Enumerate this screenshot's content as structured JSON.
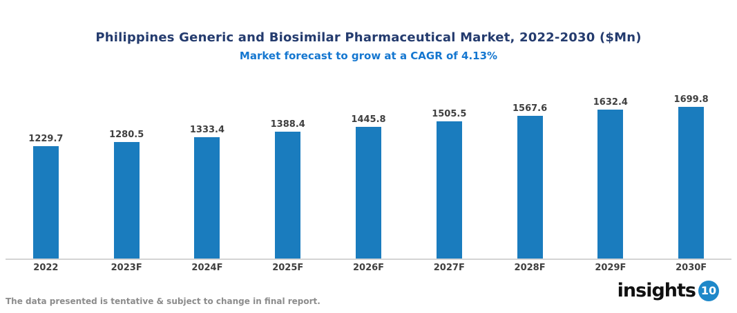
{
  "chart_data": {
    "type": "bar",
    "title": "Philippines Generic and Biosimilar Pharmaceutical Market, 2022-2030 ($Mn)",
    "subtitle": "Market forecast to grow at a CAGR of 4.13%",
    "categories": [
      "2022",
      "2023F",
      "2024F",
      "2025F",
      "2026F",
      "2027F",
      "2028F",
      "2029F",
      "2030F"
    ],
    "values": [
      1229.7,
      1280.5,
      1333.4,
      1388.4,
      1445.8,
      1505.5,
      1567.6,
      1632.4,
      1699.8
    ],
    "xlabel": "",
    "ylabel": "",
    "ylim": [
      0,
      1800
    ],
    "grid": false,
    "legend": false,
    "data_labels": true,
    "bar_color": "#1a7cbe"
  },
  "footer": {
    "disclaimer": "The data presented is tentative & subject to change in final report.",
    "logo_text": "insights",
    "logo_badge": "10"
  },
  "colors": {
    "title": "#243b6e",
    "subtitle": "#1577d0",
    "bar": "#1a7cbe",
    "value_label": "#3f3f3f",
    "axis_label": "#3f3f3f",
    "axis_line": "#d4d4d4",
    "disclaimer_text": "#8c8c8c",
    "logo_text": "#101010",
    "logo_badge_bg": "#1e88c9"
  }
}
